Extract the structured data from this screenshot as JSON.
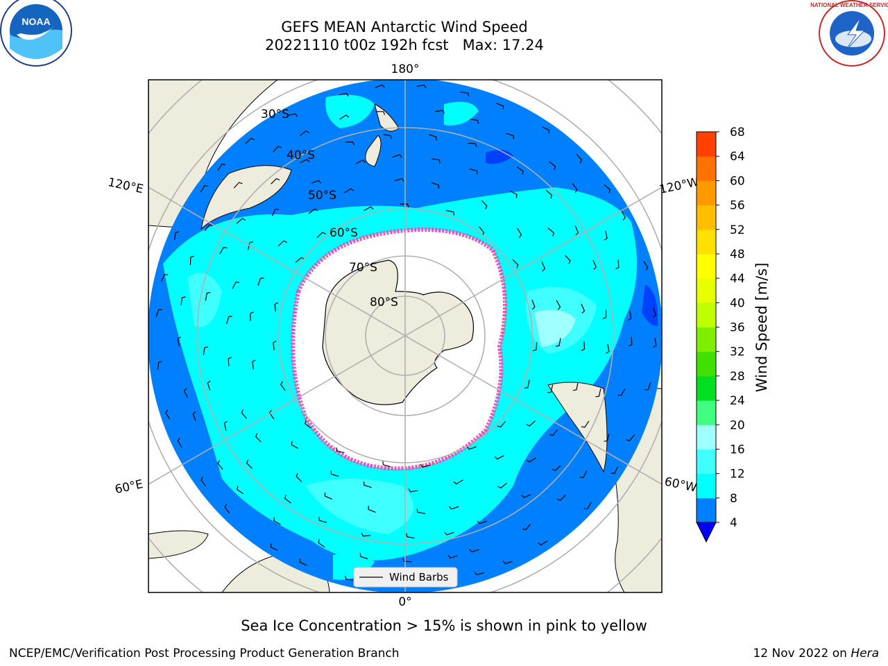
{
  "header": {
    "title": "GEFS MEAN Antarctic Wind Speed",
    "subtitle": "20221110 t00z 192h fcst   Max: 17.24"
  },
  "logos": {
    "left": {
      "name": "NOAA",
      "text": "NOAA"
    },
    "right": {
      "name": "National Weather Service",
      "text": "NATIONAL WEATHER SERVICE"
    }
  },
  "map": {
    "projection": "south-polar-stereographic",
    "longitude_labels": {
      "top": "180°",
      "bottom": "0°",
      "upper_left": "120°E",
      "upper_right": "120°W",
      "lower_left": "60°E",
      "lower_right": "60°W"
    },
    "latitude_labels": [
      "30°S",
      "40°S",
      "50°S",
      "60°S",
      "70°S",
      "80°S"
    ],
    "legend": {
      "label": "Wind Barbs"
    },
    "colors": {
      "land": "#eeecdc",
      "ocean_base": "#0080ff",
      "sea_ice": "#ffffff",
      "ice_edge": "#ff44cc"
    }
  },
  "colorbar": {
    "label": "Wind Speed [m/s]",
    "ticks": [
      "4",
      "8",
      "12",
      "16",
      "20",
      "24",
      "28",
      "32",
      "36",
      "40",
      "44",
      "48",
      "52",
      "56",
      "60",
      "64",
      "68"
    ],
    "colors": [
      "#0080ff",
      "#00ffff",
      "#40ffff",
      "#a0ffff",
      "#40ff80",
      "#00e020",
      "#40e000",
      "#80ee00",
      "#c0ff00",
      "#e8ff00",
      "#ffff00",
      "#ffe000",
      "#ffbf00",
      "#ff9900",
      "#ff7200",
      "#ff4000",
      "#ff0000"
    ],
    "under_color": "#0000ff"
  },
  "footer": {
    "ice_note": "Sea Ice Concentration > 15% is shown in pink to yellow",
    "left": "NCEP/EMC/Verification Post Processing Product Generation Branch",
    "right_date": "12 Nov 2022 on",
    "right_host": "Hera"
  }
}
